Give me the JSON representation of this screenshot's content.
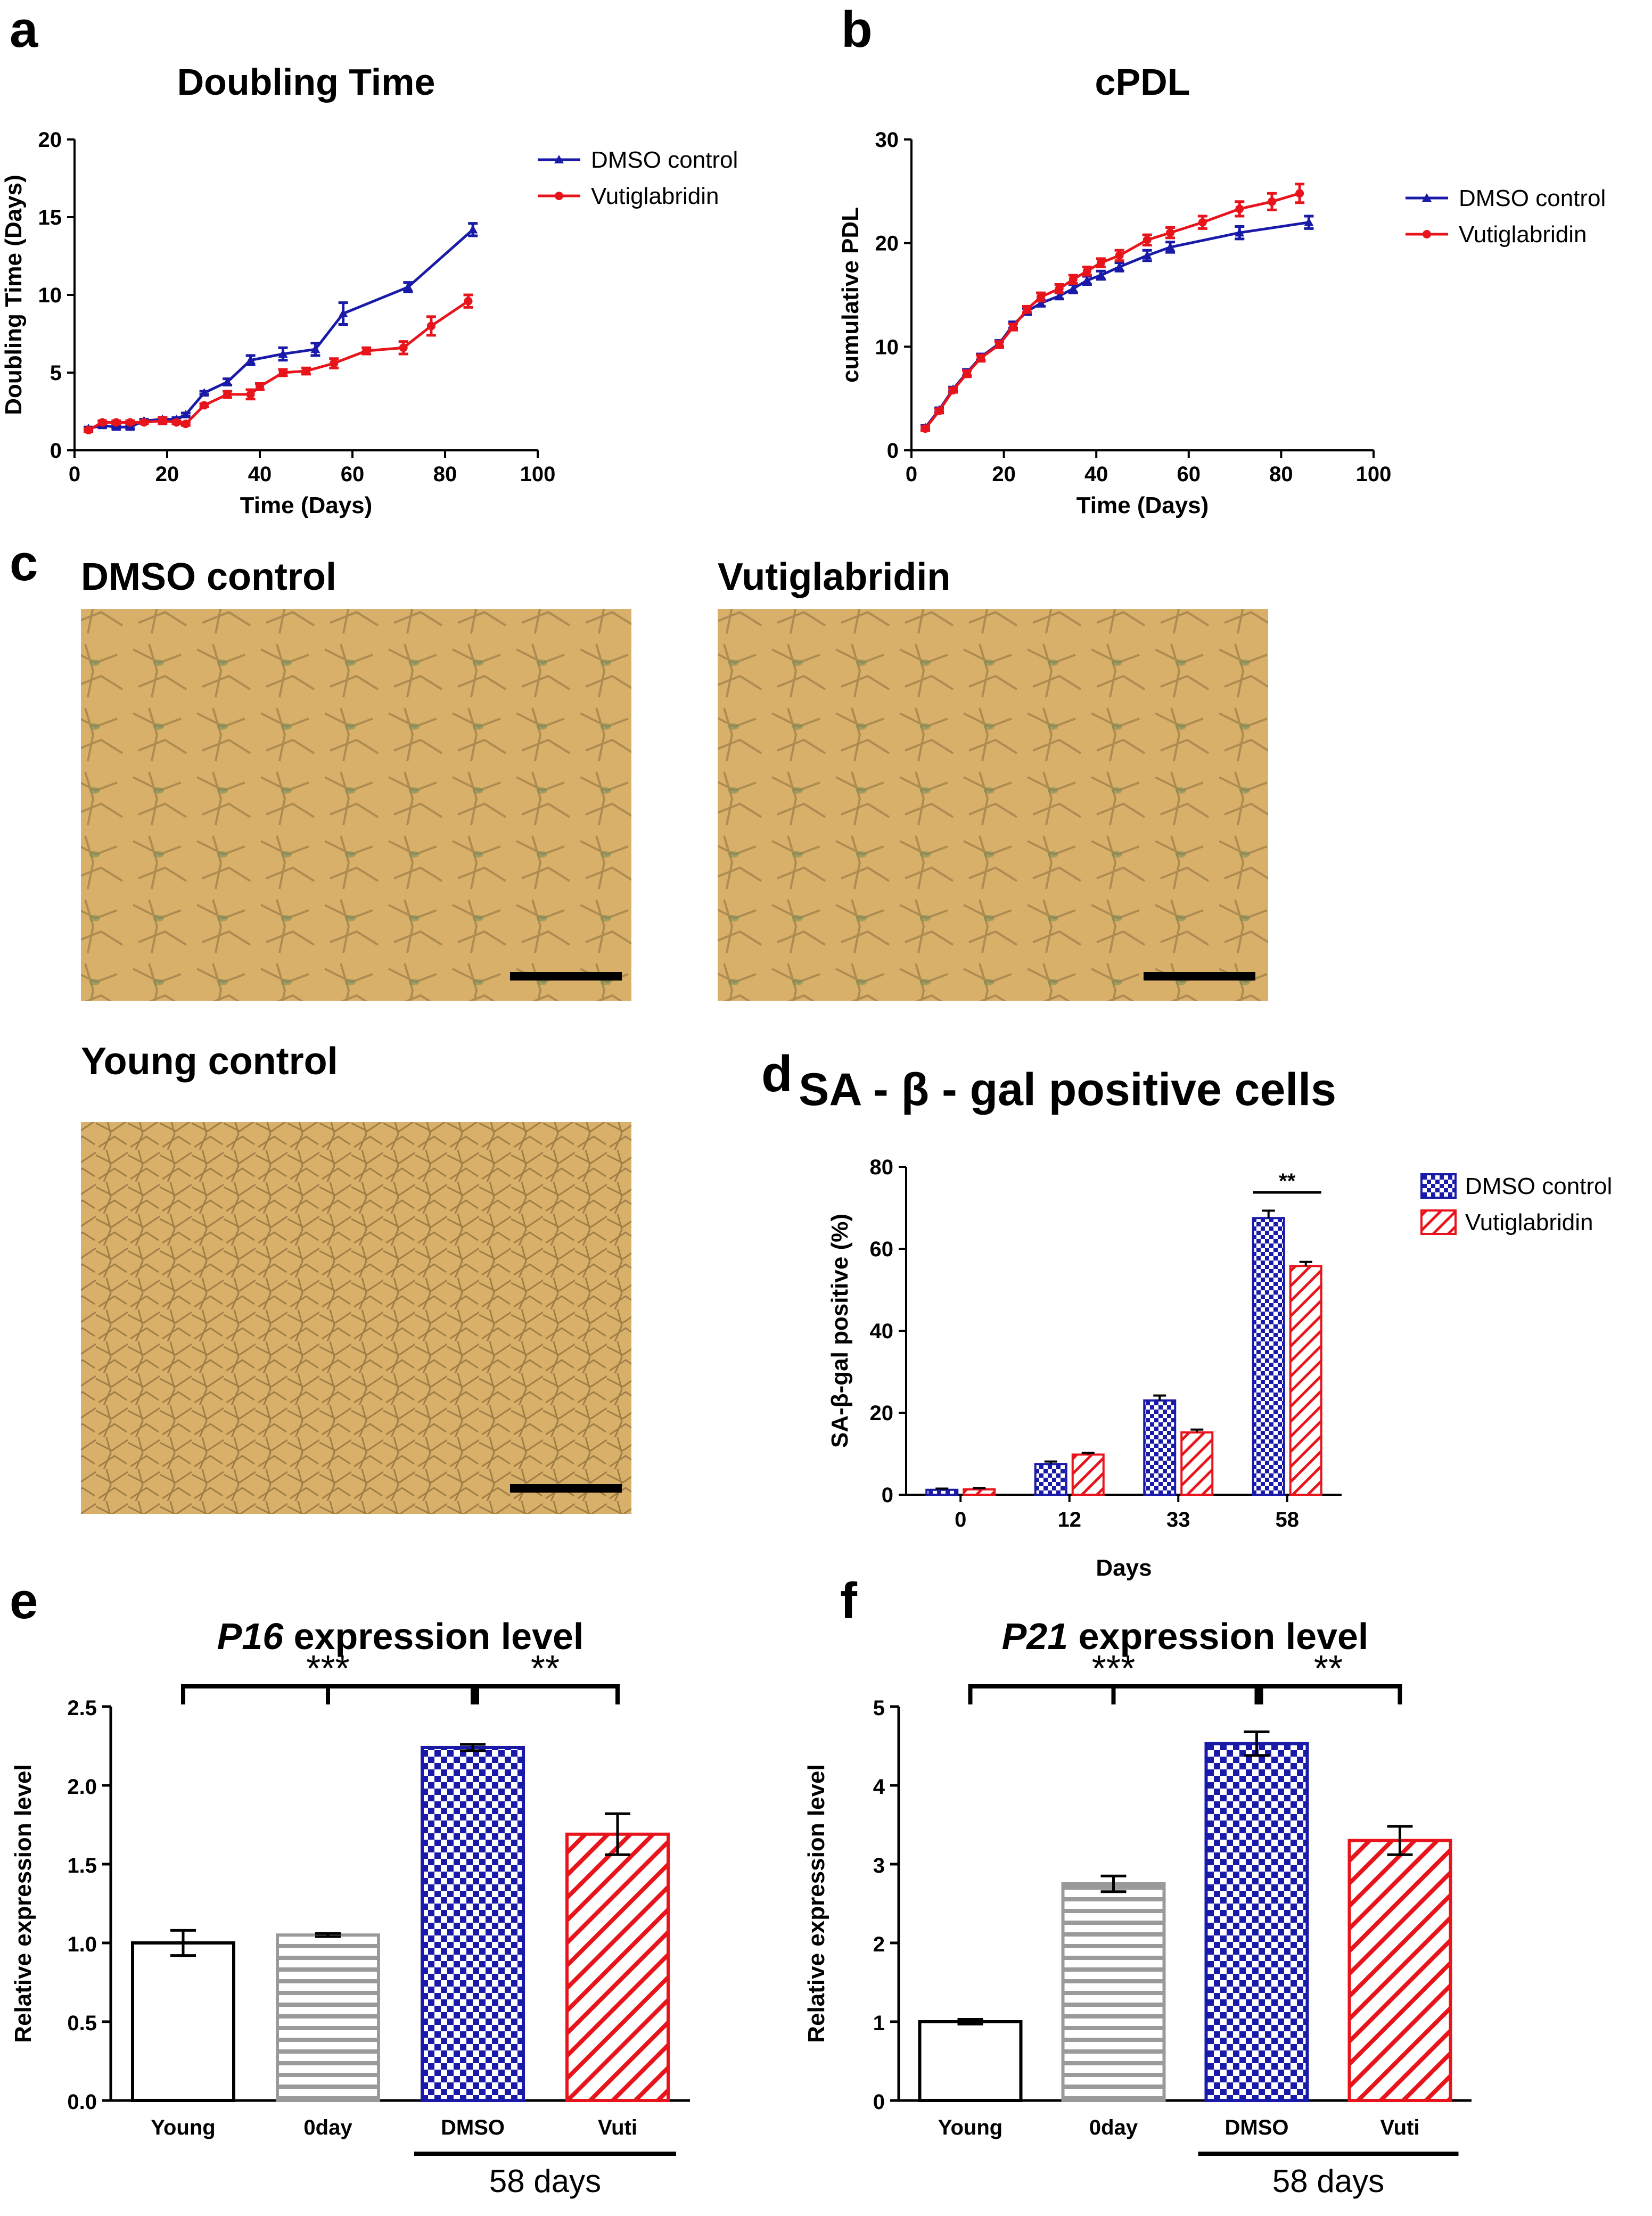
{
  "panels": {
    "a": {
      "letter": "a"
    },
    "b": {
      "letter": "b"
    },
    "c": {
      "letter": "c"
    },
    "d": {
      "letter": "d"
    },
    "e": {
      "letter": "e"
    },
    "f": {
      "letter": "f"
    }
  },
  "micrographs": {
    "dmso_title": "DMSO control",
    "vuti_title": "Vutiglabridin",
    "young_title": "Young control"
  },
  "colors": {
    "dmso": "#1a1aa8",
    "vuti": "#e8141c",
    "gray": "#9a9a9a",
    "black": "#000000",
    "cell_bg": "#d8b06a"
  },
  "chart_data": [
    {
      "id": "a",
      "type": "line",
      "title": "Doubling Time",
      "xlabel": "Time (Days)",
      "ylabel": "Doubling Time  (Days)",
      "xlim": [
        0,
        100
      ],
      "ylim": [
        0,
        20
      ],
      "xticks": [
        "0",
        "20",
        "40",
        "60",
        "80",
        "100"
      ],
      "yticks": [
        "0",
        "5",
        "10",
        "15",
        "20"
      ],
      "legend": "top-right",
      "series": [
        {
          "name": "DMSO control",
          "color": "#1a1aa8",
          "x": [
            3,
            6,
            9,
            12,
            15,
            19,
            22,
            24,
            28,
            33,
            38,
            45,
            52,
            58,
            72,
            86
          ],
          "y": [
            1.4,
            1.6,
            1.5,
            1.5,
            1.9,
            2.0,
            2.0,
            2.3,
            3.7,
            4.4,
            5.8,
            6.2,
            6.5,
            8.8,
            10.5,
            14.2
          ],
          "err": [
            0.1,
            0.1,
            0.1,
            0.1,
            0.1,
            0.1,
            0.1,
            0.1,
            0.1,
            0.2,
            0.3,
            0.4,
            0.4,
            0.7,
            0.3,
            0.4
          ]
        },
        {
          "name": "Vutiglabridin",
          "color": "#e8141c",
          "x": [
            3,
            6,
            9,
            12,
            15,
            19,
            22,
            24,
            28,
            33,
            38,
            40,
            45,
            50,
            56,
            63,
            71,
            77,
            85
          ],
          "y": [
            1.3,
            1.8,
            1.8,
            1.8,
            1.8,
            1.9,
            1.8,
            1.7,
            2.9,
            3.6,
            3.6,
            4.1,
            5.0,
            5.1,
            5.6,
            6.4,
            6.6,
            8.0,
            9.6
          ],
          "err": [
            0.1,
            0.1,
            0.1,
            0.1,
            0.1,
            0.2,
            0.1,
            0.1,
            0.1,
            0.2,
            0.3,
            0.2,
            0.2,
            0.2,
            0.3,
            0.2,
            0.4,
            0.6,
            0.4
          ]
        }
      ]
    },
    {
      "id": "b",
      "type": "line",
      "title": "cPDL",
      "xlabel": "Time (Days)",
      "ylabel": "cumulative PDL",
      "xlim": [
        0,
        100
      ],
      "ylim": [
        0,
        30
      ],
      "xticks": [
        "0",
        "20",
        "40",
        "60",
        "80",
        "100"
      ],
      "yticks": [
        "0",
        "10",
        "20",
        "30"
      ],
      "legend": "top-right",
      "series": [
        {
          "name": "DMSO control",
          "color": "#1a1aa8",
          "x": [
            3,
            6,
            9,
            12,
            15,
            19,
            22,
            25,
            28,
            32,
            35,
            38,
            41,
            45,
            51,
            56,
            71,
            86
          ],
          "y": [
            2.2,
            3.9,
            5.9,
            7.5,
            9.0,
            10.3,
            12.1,
            13.4,
            14.2,
            14.9,
            15.6,
            16.4,
            16.9,
            17.7,
            18.8,
            19.6,
            21.0,
            22.0
          ],
          "err": [
            0.2,
            0.2,
            0.2,
            0.3,
            0.3,
            0.3,
            0.3,
            0.3,
            0.3,
            0.3,
            0.4,
            0.4,
            0.4,
            0.4,
            0.5,
            0.5,
            0.6,
            0.6
          ]
        },
        {
          "name": "Vutiglabridin",
          "color": "#e8141c",
          "x": [
            3,
            6,
            9,
            12,
            15,
            19,
            22,
            25,
            28,
            32,
            35,
            38,
            41,
            45,
            51,
            56,
            63,
            71,
            78,
            84
          ],
          "y": [
            2.1,
            3.8,
            5.8,
            7.4,
            8.9,
            10.2,
            11.9,
            13.6,
            14.8,
            15.6,
            16.5,
            17.3,
            18.1,
            18.8,
            20.3,
            21.0,
            22.0,
            23.3,
            24.0,
            24.8
          ],
          "err": [
            0.2,
            0.2,
            0.2,
            0.3,
            0.3,
            0.3,
            0.3,
            0.3,
            0.4,
            0.4,
            0.4,
            0.4,
            0.4,
            0.5,
            0.5,
            0.5,
            0.6,
            0.7,
            0.8,
            0.9
          ]
        }
      ]
    },
    {
      "id": "d",
      "type": "bar",
      "title": "SA - β - gal positive cells",
      "xlabel": "Days",
      "ylabel": "SA-β-gal positive (%)",
      "ylim": [
        0,
        80
      ],
      "yticks": [
        "0",
        "20",
        "40",
        "60",
        "80"
      ],
      "categories": [
        "0",
        "12",
        "33",
        "58"
      ],
      "legend": "top-right",
      "series": [
        {
          "name": "DMSO control",
          "color": "#1a1aa8",
          "pattern": "checker",
          "values": [
            1.2,
            7.5,
            23.0,
            67.5
          ],
          "err": [
            0.3,
            0.6,
            1.2,
            1.8
          ]
        },
        {
          "name": "Vutiglabridin",
          "color": "#e8141c",
          "pattern": "hatch",
          "values": [
            1.3,
            9.8,
            15.2,
            55.8
          ],
          "err": [
            0.3,
            0.4,
            0.7,
            1.0
          ]
        }
      ],
      "annotations": [
        {
          "text": "**",
          "category": "58"
        }
      ]
    },
    {
      "id": "e",
      "type": "bar",
      "title_gene": "P16",
      "title_rest": " expression level",
      "ylabel": "Relative expression level",
      "ylim": [
        0,
        2.5
      ],
      "yticks": [
        "0.0",
        "0.5",
        "1.0",
        "1.5",
        "2.0",
        "2.5"
      ],
      "categories": [
        "Young",
        "0day",
        "DMSO",
        "Vuti"
      ],
      "group_label": "58 days",
      "values": [
        1.0,
        1.05,
        2.24,
        1.69
      ],
      "err": [
        0.08,
        0.01,
        0.02,
        0.13
      ],
      "bar_styles": [
        "white",
        "hstripe",
        "checker",
        "hatch"
      ],
      "sig": [
        {
          "text": "***"
        },
        {
          "text": "**"
        }
      ]
    },
    {
      "id": "f",
      "type": "bar",
      "title_gene": "P21",
      "title_rest": " expression level",
      "ylabel": "Relative expression level",
      "ylim": [
        0,
        5
      ],
      "yticks": [
        "0",
        "1",
        "2",
        "3",
        "4",
        "5"
      ],
      "categories": [
        "Young",
        "0day",
        "DMSO",
        "Vuti"
      ],
      "group_label": "58 days",
      "values": [
        1.0,
        2.75,
        4.53,
        3.3
      ],
      "err": [
        0.03,
        0.1,
        0.15,
        0.18
      ],
      "bar_styles": [
        "white",
        "hstripe",
        "checker",
        "hatch"
      ],
      "sig": [
        {
          "text": "***"
        },
        {
          "text": "**"
        }
      ]
    }
  ]
}
